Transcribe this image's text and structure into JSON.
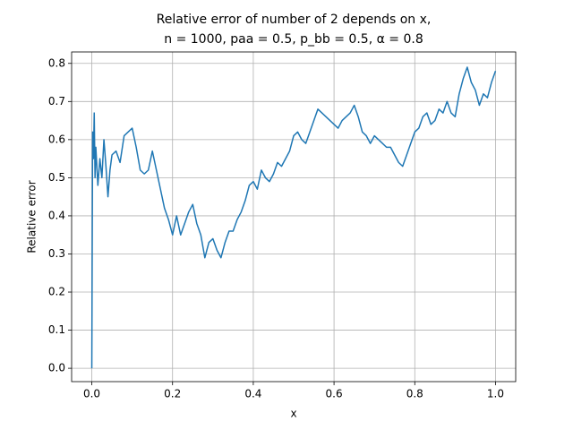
{
  "chart_data": {
    "type": "line",
    "title": "Relative error of number of 2 depends on x,",
    "subtitle": "n = 1000, paa = 0.5, p_bb = 0.5, α = 0.8",
    "x_label": "x",
    "y_label": "Relative error",
    "xlim": [
      -0.05,
      1.05
    ],
    "ylim": [
      -0.035,
      0.83
    ],
    "xticks": [
      {
        "value": 0,
        "label": "0.0"
      },
      0.2,
      0.4,
      0.6,
      0.8,
      {
        "value": 1,
        "label": "1.0"
      }
    ],
    "yticks": [
      {
        "value": 0,
        "label": "0.0"
      },
      0.1,
      0.2,
      0.3,
      0.4,
      0.5,
      0.6,
      0.7,
      0.8
    ],
    "grid": true,
    "x": [
      0,
      0.002,
      0.004,
      0.006,
      0.008,
      0.01,
      0.015,
      0.02,
      0.025,
      0.03,
      0.035,
      0.04,
      0.045,
      0.05,
      0.06,
      0.07,
      0.08,
      0.09,
      0.1,
      0.11,
      0.12,
      0.13,
      0.14,
      0.15,
      0.16,
      0.17,
      0.18,
      0.19,
      0.2,
      0.21,
      0.22,
      0.23,
      0.24,
      0.25,
      0.26,
      0.27,
      0.28,
      0.29,
      0.3,
      0.31,
      0.32,
      0.33,
      0.34,
      0.35,
      0.36,
      0.37,
      0.38,
      0.39,
      0.4,
      0.41,
      0.42,
      0.43,
      0.44,
      0.45,
      0.46,
      0.47,
      0.48,
      0.49,
      0.5,
      0.51,
      0.52,
      0.53,
      0.54,
      0.55,
      0.56,
      0.57,
      0.58,
      0.59,
      0.6,
      0.61,
      0.62,
      0.63,
      0.64,
      0.65,
      0.66,
      0.67,
      0.68,
      0.69,
      0.7,
      0.71,
      0.72,
      0.73,
      0.74,
      0.75,
      0.76,
      0.77,
      0.78,
      0.79,
      0.8,
      0.81,
      0.82,
      0.83,
      0.84,
      0.85,
      0.86,
      0.87,
      0.88,
      0.89,
      0.9,
      0.91,
      0.92,
      0.93,
      0.94,
      0.95,
      0.96,
      0.97,
      0.98,
      0.99,
      1
    ],
    "series": [
      {
        "color": "#1f77b4",
        "values": [
          0,
          0.62,
          0.55,
          0.67,
          0.5,
          0.58,
          0.48,
          0.55,
          0.5,
          0.6,
          0.53,
          0.45,
          0.52,
          0.56,
          0.57,
          0.54,
          0.61,
          0.62,
          0.63,
          0.58,
          0.52,
          0.51,
          0.52,
          0.57,
          0.52,
          0.47,
          0.42,
          0.39,
          0.35,
          0.4,
          0.35,
          0.38,
          0.41,
          0.43,
          0.38,
          0.35,
          0.29,
          0.33,
          0.34,
          0.31,
          0.29,
          0.33,
          0.36,
          0.36,
          0.39,
          0.41,
          0.44,
          0.48,
          0.49,
          0.47,
          0.52,
          0.5,
          0.49,
          0.51,
          0.54,
          0.53,
          0.55,
          0.57,
          0.61,
          0.62,
          0.6,
          0.59,
          0.62,
          0.65,
          0.68,
          0.67,
          0.66,
          0.65,
          0.64,
          0.63,
          0.65,
          0.66,
          0.67,
          0.69,
          0.66,
          0.62,
          0.61,
          0.59,
          0.61,
          0.6,
          0.59,
          0.58,
          0.58,
          0.56,
          0.54,
          0.53,
          0.56,
          0.59,
          0.62,
          0.63,
          0.66,
          0.67,
          0.64,
          0.65,
          0.68,
          0.67,
          0.7,
          0.67,
          0.66,
          0.72,
          0.76,
          0.79,
          0.75,
          0.73,
          0.69,
          0.72,
          0.71,
          0.75,
          0.78
        ]
      }
    ]
  }
}
